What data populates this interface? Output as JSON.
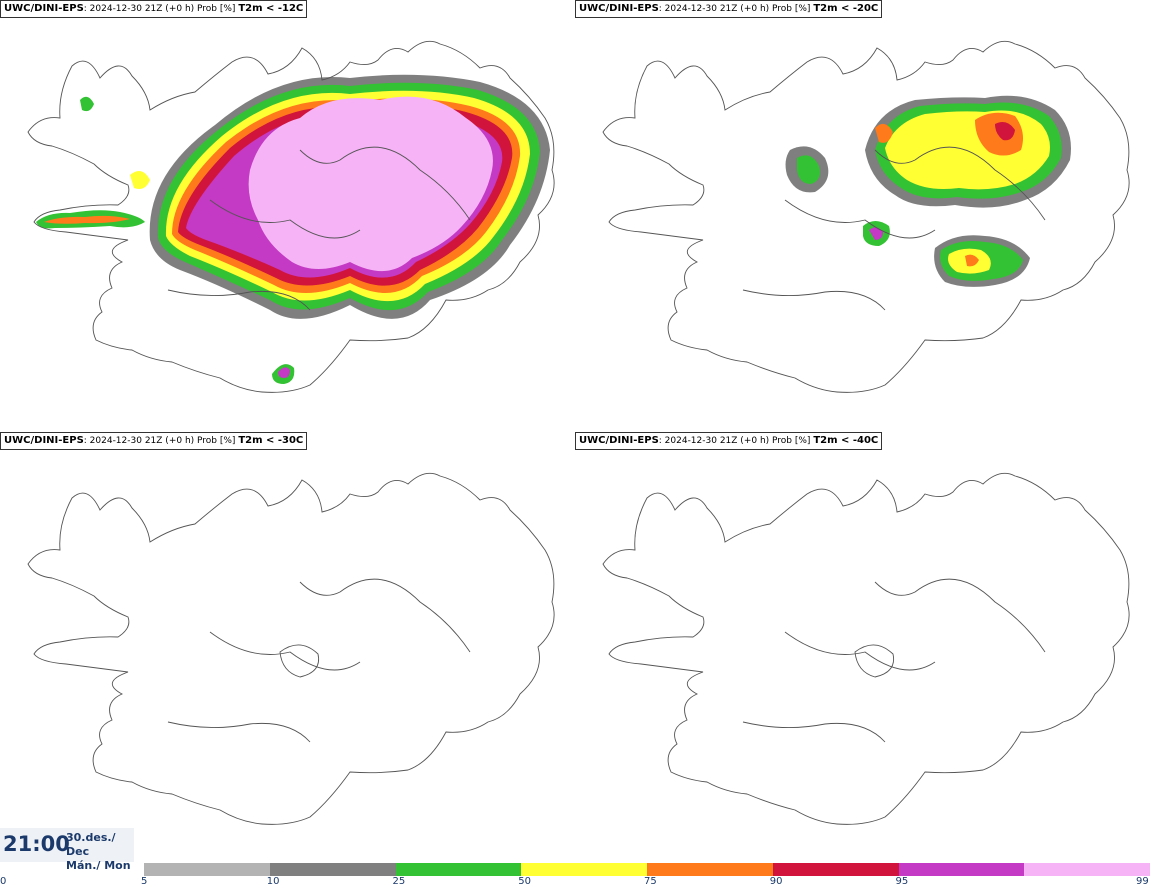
{
  "panels": [
    {
      "model": "UWC/DINI-EPS",
      "info": ": 2024-12-30 21Z (+0 h) Prob [%]",
      "variable": "T2m < -12C"
    },
    {
      "model": "UWC/DINI-EPS",
      "info": ": 2024-12-30 21Z (+0 h) Prob [%]",
      "variable": "T2m < -20C"
    },
    {
      "model": "UWC/DINI-EPS",
      "info": ": 2024-12-30 21Z (+0 h) Prob [%]",
      "variable": "T2m < -30C"
    },
    {
      "model": "UWC/DINI-EPS",
      "info": ": 2024-12-30 21Z (+0 h) Prob [%]",
      "variable": "T2m < -40C"
    }
  ],
  "valid_time": {
    "time": "21:00",
    "date_line1": "30.des./ Dec",
    "date_line2": "Mán./ Mon"
  },
  "legend": {
    "ticks": [
      "0",
      "5",
      "10",
      "25",
      "50",
      "75",
      "90",
      "95",
      "99"
    ],
    "colors": [
      "#b3b3b3",
      "#7f7f7f",
      "#33c233",
      "#ffff33",
      "#ff7a1a",
      "#d0143c",
      "#c43ac4",
      "#f6b3f6"
    ]
  }
}
